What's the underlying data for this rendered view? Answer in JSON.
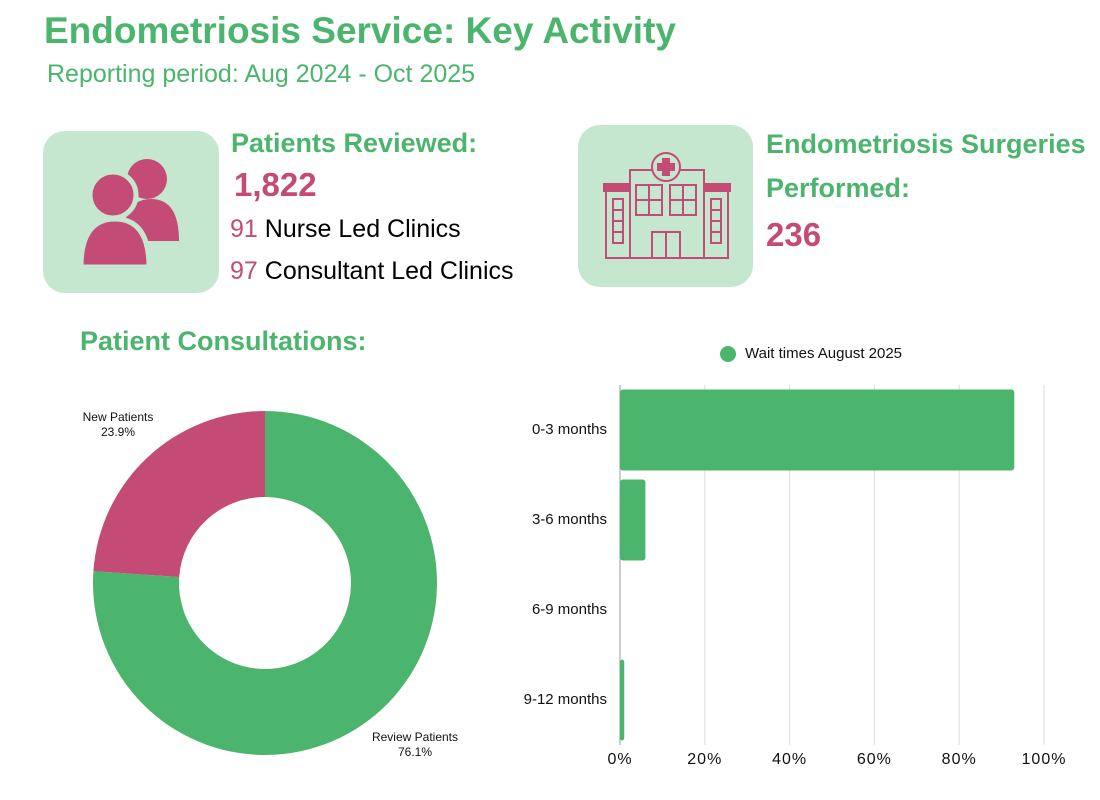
{
  "header": {
    "title": "Endometriosis Service: Key Activity",
    "subtitle": "Reporting period: Aug 2024 - Oct 2025"
  },
  "kpis": [
    {
      "title": "Patients Reviewed:",
      "value": "1,822",
      "lines": [
        {
          "count": 91,
          "label": "Nurse Led Clinics"
        },
        {
          "count": 97,
          "label": "Consultant Led Clinics"
        }
      ]
    },
    {
      "title": "Endometriosis Surgeries Performed:",
      "value": 236
    }
  ],
  "chart_data": [
    {
      "type": "donut",
      "title": "Patient Consultations:",
      "categories": [
        "New Patients",
        "Review Patients"
      ],
      "values": [
        23.9,
        76.1
      ],
      "value_labels": [
        "23.9%",
        "76.1%"
      ],
      "colors": [
        "#c44b76",
        "#4cb56d"
      ]
    },
    {
      "type": "hbar",
      "categories": [
        "0-3 months",
        "3-6 months",
        "6-9 months",
        "9-12 months"
      ],
      "series": [
        {
          "name": "Wait times August 2025",
          "color": "#4cb56d",
          "values": [
            93,
            6,
            0,
            1
          ]
        }
      ],
      "xlim": [
        0,
        100
      ],
      "xticks": [
        {
          "value": 0,
          "label": "0%"
        },
        {
          "value": 20,
          "label": "20%"
        },
        {
          "value": 40,
          "label": "40%"
        },
        {
          "value": 60,
          "label": "60%"
        },
        {
          "value": 80,
          "label": "80%"
        },
        {
          "value": 100,
          "label": "100%"
        }
      ],
      "grid": true,
      "legend": "top"
    }
  ]
}
